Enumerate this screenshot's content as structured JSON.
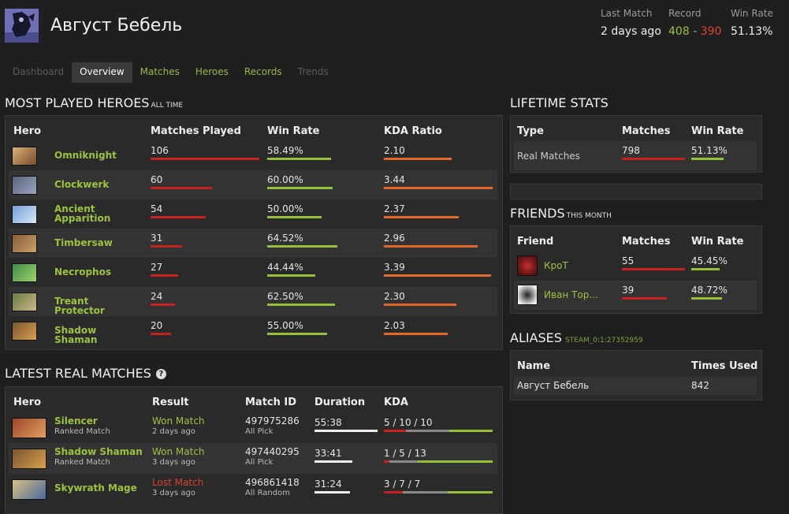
{
  "player": {
    "name": "Август Бебель"
  },
  "header_stats": {
    "last_match_label": "Last Match",
    "last_match_value": "2 days ago",
    "record_label": "Record",
    "record_wins": "408",
    "record_sep": "-",
    "record_losses": "390",
    "win_rate_label": "Win Rate",
    "win_rate_value": "51.13%"
  },
  "tabs": [
    {
      "label": "Dashboard"
    },
    {
      "label": "Overview"
    },
    {
      "label": "Matches"
    },
    {
      "label": "Heroes"
    },
    {
      "label": "Records"
    },
    {
      "label": "Trends"
    }
  ],
  "most_played": {
    "title": "Most Played Heroes",
    "subtitle": "ALL TIME",
    "columns": [
      "Hero",
      "Matches Played",
      "Win Rate",
      "KDA Ratio"
    ],
    "rows": [
      {
        "hero": "Omniknight",
        "matches": "106",
        "matches_frac": 1.0,
        "win_rate": "58.49%",
        "win_frac": 0.585,
        "kda": "2.10",
        "kda_frac": 0.62
      },
      {
        "hero": "Clockwerk",
        "matches": "60",
        "matches_frac": 0.566,
        "win_rate": "60.00%",
        "win_frac": 0.6,
        "kda": "3.44",
        "kda_frac": 1.0
      },
      {
        "hero": "Ancient Apparition",
        "matches": "54",
        "matches_frac": 0.509,
        "win_rate": "50.00%",
        "win_frac": 0.5,
        "kda": "2.37",
        "kda_frac": 0.69
      },
      {
        "hero": "Timbersaw",
        "matches": "31",
        "matches_frac": 0.292,
        "win_rate": "64.52%",
        "win_frac": 0.645,
        "kda": "2.96",
        "kda_frac": 0.86
      },
      {
        "hero": "Necrophos",
        "matches": "27",
        "matches_frac": 0.255,
        "win_rate": "44.44%",
        "win_frac": 0.444,
        "kda": "3.39",
        "kda_frac": 0.985
      },
      {
        "hero": "Treant Protector",
        "matches": "24",
        "matches_frac": 0.226,
        "win_rate": "62.50%",
        "win_frac": 0.625,
        "kda": "2.30",
        "kda_frac": 0.67
      },
      {
        "hero": "Shadow Shaman",
        "matches": "20",
        "matches_frac": 0.189,
        "win_rate": "55.00%",
        "win_frac": 0.55,
        "kda": "2.03",
        "kda_frac": 0.59
      }
    ]
  },
  "latest_matches": {
    "title": "Latest Real Matches",
    "help_glyph": "?",
    "columns": [
      "Hero",
      "Result",
      "Match ID",
      "Duration",
      "KDA"
    ],
    "rows": [
      {
        "hero": "Silencer",
        "type": "Ranked Match",
        "result": "Won Match",
        "won": true,
        "when": "2 days ago",
        "match_id": "497975286",
        "mode": "All Pick",
        "duration": "55:38",
        "duration_frac": 1.0,
        "kda": "5 / 10 / 10",
        "k": 5,
        "d": 10,
        "a": 10
      },
      {
        "hero": "Shadow Shaman",
        "type": "Ranked Match",
        "result": "Won Match",
        "won": true,
        "when": "3 days ago",
        "match_id": "497440295",
        "mode": "All Pick",
        "duration": "33:41",
        "duration_frac": 0.605,
        "kda": "1 / 5 / 13",
        "k": 1,
        "d": 5,
        "a": 13
      },
      {
        "hero": "Skywrath Mage",
        "type": "",
        "result": "Lost Match",
        "won": false,
        "when": "3 days ago",
        "match_id": "496861418",
        "mode": "All Random",
        "duration": "31:24",
        "duration_frac": 0.564,
        "kda": "3 / 7 / 7",
        "k": 3,
        "d": 7,
        "a": 7
      }
    ]
  },
  "lifetime": {
    "title": "Lifetime Stats",
    "columns": [
      "Type",
      "Matches",
      "Win Rate"
    ],
    "rows": [
      {
        "type": "Real Matches",
        "matches": "798",
        "win_rate": "51.13%",
        "win_frac": 0.511
      }
    ]
  },
  "friends": {
    "title": "Friends",
    "subtitle": "THIS MONTH",
    "columns": [
      "Friend",
      "Matches",
      "Win Rate"
    ],
    "rows": [
      {
        "name": "КроТ",
        "matches": "55",
        "matches_frac": 1.0,
        "win_rate": "45.45%",
        "win_frac": 0.455
      },
      {
        "name": "Иван Тор...",
        "matches": "39",
        "matches_frac": 0.71,
        "win_rate": "48.72%",
        "win_frac": 0.487
      }
    ]
  },
  "aliases": {
    "title": "Aliases",
    "steam_id": "STEAM_0:1:27352959",
    "columns": [
      "Name",
      "Times Used"
    ],
    "rows": [
      {
        "name": "Август Бебель",
        "times": "842"
      }
    ]
  },
  "colors": {
    "win": "#9cc33c",
    "loss": "#d8422f",
    "bar_red": "#c7221d",
    "bar_green": "#97bf3b",
    "bar_orange": "#e2672a"
  }
}
